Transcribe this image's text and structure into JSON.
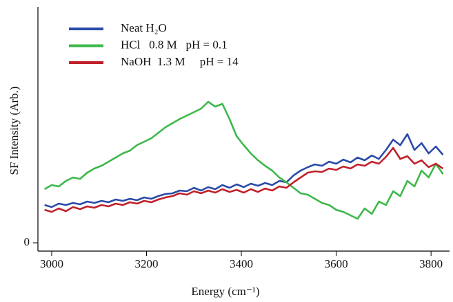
{
  "chart_data": {
    "type": "line",
    "x_label": "Energy (cm⁻¹)",
    "y_label": "SF Intensity (Arb.)",
    "xlim": [
      2971,
      3839
    ],
    "xticks": [
      3000,
      3200,
      3400,
      3600,
      3800
    ],
    "ylim": [
      -0.12,
      3.43
    ],
    "yticks": [
      0
    ],
    "x": [
      2985,
      3000,
      3015,
      3030,
      3045,
      3060,
      3075,
      3090,
      3105,
      3120,
      3135,
      3150,
      3165,
      3180,
      3195,
      3210,
      3225,
      3240,
      3255,
      3270,
      3285,
      3300,
      3315,
      3330,
      3345,
      3360,
      3375,
      3390,
      3405,
      3420,
      3435,
      3450,
      3465,
      3480,
      3495,
      3510,
      3525,
      3540,
      3555,
      3570,
      3585,
      3600,
      3615,
      3630,
      3645,
      3660,
      3675,
      3690,
      3705,
      3720,
      3735,
      3750,
      3765,
      3780,
      3795,
      3810,
      3825
    ],
    "series": [
      {
        "name": "Neat H₂O",
        "color": "#2a4aa8",
        "values": [
          0.55,
          0.52,
          0.57,
          0.55,
          0.58,
          0.56,
          0.6,
          0.58,
          0.61,
          0.59,
          0.63,
          0.61,
          0.64,
          0.62,
          0.66,
          0.64,
          0.68,
          0.71,
          0.72,
          0.76,
          0.75,
          0.8,
          0.76,
          0.81,
          0.78,
          0.84,
          0.8,
          0.85,
          0.81,
          0.86,
          0.83,
          0.87,
          0.84,
          0.9,
          0.88,
          0.98,
          1.05,
          1.1,
          1.14,
          1.12,
          1.18,
          1.15,
          1.21,
          1.17,
          1.24,
          1.2,
          1.27,
          1.22,
          1.35,
          1.5,
          1.42,
          1.58,
          1.35,
          1.45,
          1.3,
          1.4,
          1.28
        ]
      },
      {
        "name": "HCl   0.8 M   pH = 0.1",
        "color": "#3cb84a",
        "values": [
          0.78,
          0.84,
          0.82,
          0.9,
          0.95,
          0.93,
          1.02,
          1.08,
          1.12,
          1.18,
          1.24,
          1.3,
          1.34,
          1.42,
          1.47,
          1.52,
          1.6,
          1.68,
          1.74,
          1.8,
          1.85,
          1.9,
          1.95,
          2.05,
          1.98,
          2.02,
          1.8,
          1.55,
          1.42,
          1.3,
          1.2,
          1.12,
          1.05,
          0.95,
          0.88,
          0.8,
          0.72,
          0.7,
          0.64,
          0.58,
          0.55,
          0.48,
          0.45,
          0.4,
          0.35,
          0.5,
          0.42,
          0.6,
          0.55,
          0.75,
          0.68,
          0.9,
          0.82,
          1.05,
          0.95,
          1.15,
          1.0
        ]
      },
      {
        "name": "NaOH  1.3 M     pH = 14",
        "color": "#c0202a",
        "values": [
          0.48,
          0.45,
          0.5,
          0.46,
          0.52,
          0.49,
          0.53,
          0.51,
          0.55,
          0.53,
          0.57,
          0.55,
          0.59,
          0.57,
          0.61,
          0.59,
          0.63,
          0.66,
          0.68,
          0.72,
          0.7,
          0.75,
          0.72,
          0.76,
          0.73,
          0.78,
          0.74,
          0.77,
          0.73,
          0.78,
          0.74,
          0.79,
          0.76,
          0.82,
          0.8,
          0.88,
          0.95,
          1.02,
          1.04,
          1.03,
          1.08,
          1.06,
          1.11,
          1.08,
          1.14,
          1.12,
          1.18,
          1.15,
          1.25,
          1.38,
          1.22,
          1.26,
          1.15,
          1.2,
          1.1,
          1.15,
          1.08
        ]
      }
    ]
  }
}
